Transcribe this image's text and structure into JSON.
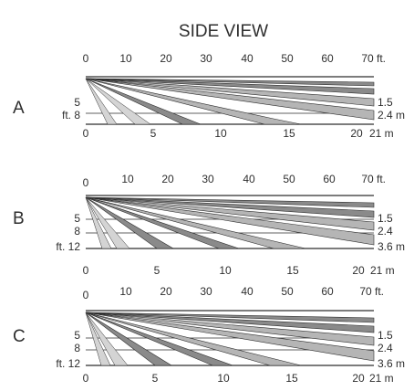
{
  "title": "SIDE VIEW",
  "colors": {
    "ink": "#2e2e2e",
    "dark_zone": "#8a8a8a",
    "mid_zone": "#b5b5b5",
    "light_zone": "#d4d4d4",
    "background": "#ffffff"
  },
  "top_scale": {
    "ticks": [
      "0",
      "10",
      "20",
      "30",
      "40",
      "50",
      "60",
      "70"
    ],
    "unit": "ft."
  },
  "bottom_scale": {
    "ticks": [
      "0",
      "5",
      "10",
      "15",
      "20"
    ],
    "unit": "21 m"
  },
  "panels": [
    {
      "label": "A",
      "height_labels_ft": [
        "5",
        "ft. 8"
      ],
      "height_labels_m": [
        "1.5",
        "2.4 m"
      ],
      "mount_height_ft": 8
    },
    {
      "label": "B",
      "height_labels_ft": [
        "5",
        "8",
        "ft. 12"
      ],
      "height_labels_m": [
        "1.5",
        "2.4",
        "3.6 m"
      ],
      "mount_height_ft": 12
    },
    {
      "label": "C",
      "height_labels_ft": [
        "5",
        "8",
        "ft. 12"
      ],
      "height_labels_m": [
        "1.5",
        "2.4",
        "3.6 m"
      ],
      "mount_height_ft": 12
    }
  ]
}
